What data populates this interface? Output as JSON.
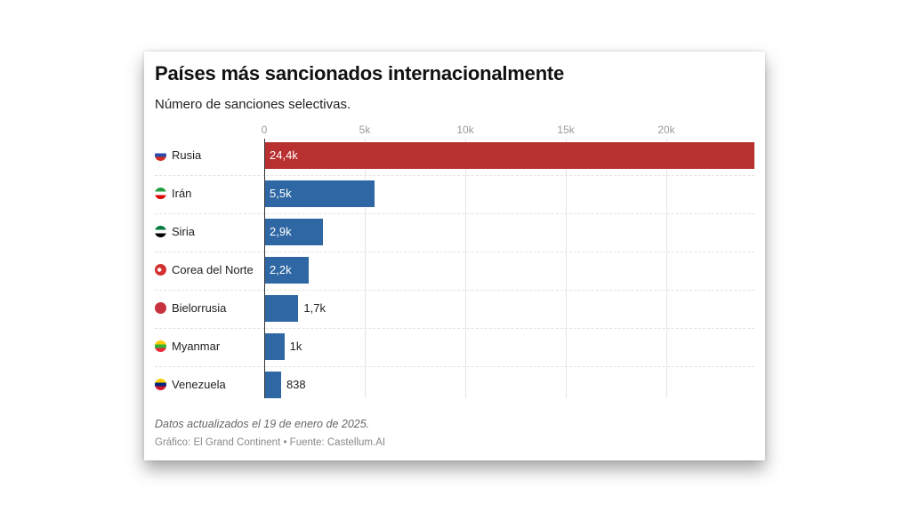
{
  "chart_data": {
    "type": "bar",
    "orientation": "horizontal",
    "title": "Países más sancionados internacionalmente",
    "subtitle": "Número de sanciones selectivas.",
    "categories": [
      "Rusia",
      "Irán",
      "Siria",
      "Corea del Norte",
      "Bielorrusia",
      "Myanmar",
      "Venezuela"
    ],
    "values": [
      24400,
      5500,
      2900,
      2200,
      1700,
      1000,
      838
    ],
    "value_labels": [
      "24,4k",
      "5,5k",
      "2,9k",
      "2,2k",
      "1,7k",
      "1k",
      "838"
    ],
    "bar_colors": [
      "#b83030",
      "#2e67a3",
      "#2e67a3",
      "#2e67a3",
      "#2e67a3",
      "#2e67a3",
      "#2e67a3"
    ],
    "xaxis": {
      "ticks": [
        0,
        5000,
        10000,
        15000,
        20000
      ],
      "tick_labels": [
        "0",
        "5k",
        "10k",
        "15k",
        "20k"
      ],
      "position": "top",
      "range": [
        0,
        24400
      ]
    },
    "grid": true,
    "flags": [
      "russia",
      "iran",
      "syria",
      "north-korea",
      "belarus",
      "myanmar",
      "venezuela"
    ],
    "note": "Datos actualizados el 19 de enero de 2025.",
    "source": "Gráfico: El Grand Continent • Fuente: Castellum.AI"
  }
}
